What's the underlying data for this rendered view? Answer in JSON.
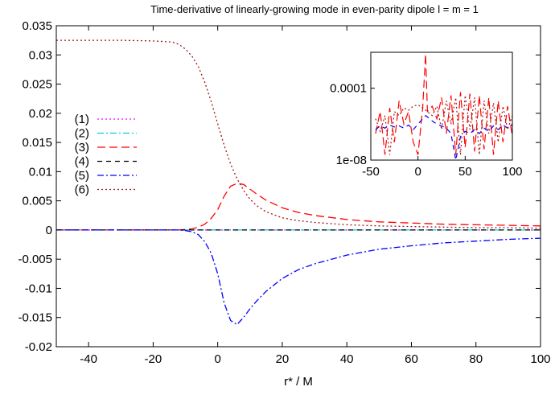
{
  "chart_data": [
    {
      "type": "line",
      "title": "Time-derivative of linearly-growing mode in even-parity dipole l = m = 1",
      "xlabel": "r* / M",
      "ylabel": "",
      "xlim": [
        -50,
        100
      ],
      "ylim": [
        -0.02,
        0.035
      ],
      "x_ticks": [
        -40,
        -20,
        0,
        20,
        40,
        60,
        80,
        100
      ],
      "x_tick_labels": [
        "-40",
        "-20",
        "0",
        "20",
        "40",
        "60",
        "80",
        "100"
      ],
      "y_ticks": [
        0.035,
        0.03,
        0.025,
        0.02,
        0.015,
        0.01,
        0.005,
        0,
        -0.005,
        -0.01,
        -0.015,
        -0.02
      ],
      "y_tick_labels": [
        "0.035",
        "0.03",
        "0.025",
        "0.02",
        "0.015",
        "0.01",
        "0.005",
        "0",
        "-0.005",
        "-0.01",
        "-0.015",
        "-0.02"
      ],
      "grid": false,
      "legend_position": "left, middle",
      "x": [
        -50,
        -40,
        -30,
        -20,
        -14,
        -12,
        -10,
        -8,
        -6,
        -4,
        -2,
        0,
        2,
        4,
        6,
        8,
        10,
        12,
        15,
        20,
        25,
        30,
        40,
        50,
        60,
        70,
        80,
        90,
        100
      ],
      "series": [
        {
          "name": "(1)",
          "color": "#ff00ff",
          "dash": "dot",
          "values": [
            0,
            0,
            0,
            0,
            0,
            0,
            0,
            0,
            0,
            0,
            0,
            0,
            0,
            0,
            0,
            0,
            0,
            0,
            0,
            0,
            0,
            0,
            0,
            0,
            0,
            0,
            0,
            0,
            0
          ]
        },
        {
          "name": "(2)",
          "color": "#00d0d0",
          "dash": "dash-dot",
          "values": [
            0,
            0,
            0,
            0,
            0,
            0,
            0,
            0,
            0,
            0,
            0,
            0,
            0,
            0,
            0,
            0,
            0,
            0,
            0,
            0,
            0,
            0,
            0,
            0,
            0,
            0,
            0,
            0,
            0
          ]
        },
        {
          "name": "(3)",
          "color": "#ff0000",
          "dash": "long-dash",
          "values": [
            0,
            0,
            0,
            0,
            0,
            0,
            0.0001,
            0.0002,
            0.0005,
            0.001,
            0.002,
            0.0035,
            0.0058,
            0.0075,
            0.008,
            0.0078,
            0.007,
            0.0062,
            0.0051,
            0.0038,
            0.003,
            0.0025,
            0.0018,
            0.0014,
            0.0012,
            0.001,
            0.0009,
            0.0008,
            0.0007
          ]
        },
        {
          "name": "(4)",
          "color": "#000000",
          "dash": "dash",
          "values": [
            0,
            0,
            0,
            0,
            0,
            0,
            0,
            0,
            0,
            0,
            0,
            0,
            0,
            0,
            0,
            0,
            0,
            0,
            0,
            0,
            0,
            0,
            0,
            0,
            0,
            0,
            0,
            0,
            0
          ]
        },
        {
          "name": "(5)",
          "color": "#0000ff",
          "dash": "dash-dot",
          "values": [
            0,
            0,
            0,
            0,
            0,
            0,
            -0.0001,
            -0.0003,
            -0.0008,
            -0.002,
            -0.004,
            -0.0075,
            -0.0125,
            -0.0155,
            -0.0162,
            -0.015,
            -0.0135,
            -0.0122,
            -0.0105,
            -0.0083,
            -0.0068,
            -0.0058,
            -0.0043,
            -0.0033,
            -0.0027,
            -0.0022,
            -0.0019,
            -0.0016,
            -0.0014
          ]
        },
        {
          "name": "(6)",
          "color": "#a01818",
          "dash": "dot",
          "values": [
            0.0325,
            0.0325,
            0.0325,
            0.0324,
            0.0322,
            0.0318,
            0.031,
            0.0298,
            0.028,
            0.0253,
            0.022,
            0.0182,
            0.0145,
            0.0113,
            0.0088,
            0.0068,
            0.0053,
            0.0042,
            0.0031,
            0.0021,
            0.0016,
            0.0013,
            0.0009,
            0.0007,
            0.0006,
            0.0005,
            0.0004,
            0.0004,
            0.0003
          ]
        }
      ]
    },
    {
      "type": "line",
      "title": "",
      "xlabel": "",
      "ylabel": "",
      "xlim": [
        -50,
        100
      ],
      "ylim": [
        1e-08,
        0.01
      ],
      "y_scale": "log",
      "x_ticks": [
        -50,
        0,
        50,
        100
      ],
      "x_tick_labels": [
        "-50",
        "0",
        "50",
        "100"
      ],
      "y_ticks": [
        0.0001,
        1e-08
      ],
      "y_tick_labels": [
        "0.0001",
        "1e-08"
      ],
      "grid": false,
      "x": [
        -45,
        -40,
        -35,
        -30,
        -25,
        -20,
        -15,
        -10,
        -5,
        0,
        5,
        8,
        10,
        15,
        20,
        25,
        30,
        35,
        40,
        45,
        50,
        55,
        60,
        65,
        70,
        75,
        80,
        85,
        90,
        95,
        100
      ],
      "series": [
        {
          "name": "(3)",
          "color": "#ff0000",
          "dash": "long-dash",
          "values": [
            3e-07,
            5e-06,
            2e-08,
            8e-06,
            1e-07,
            2e-05,
            1e-06,
            5e-06,
            1e-07,
            2e-08,
            8e-06,
            0.008,
            5e-06,
            1e-05,
            2e-06,
            3e-05,
            3e-07,
            4e-05,
            2e-08,
            6e-05,
            5e-08,
            5e-05,
            3e-08,
            4e-05,
            4e-08,
            3e-05,
            2e-08,
            2e-05,
            1e-07,
            1e-05,
            2e-07
          ]
        },
        {
          "name": "(5)",
          "color": "#0000ff",
          "dash": "dash",
          "values": [
            5e-07,
            8e-07,
            6e-07,
            9e-07,
            7e-07,
            8e-07,
            6e-07,
            9e-07,
            5e-07,
            1e-06,
            2e-06,
            3e-06,
            2.5e-06,
            1.5e-06,
            1e-06,
            8e-07,
            6e-07,
            3e-07,
            1e-08,
            2e-07,
            4e-07,
            3e-07,
            5e-07,
            3e-07,
            6e-07,
            4e-07,
            8e-07,
            5e-07,
            9e-07,
            6e-07,
            1e-06
          ]
        },
        {
          "name": "(6)",
          "color": "#a01818",
          "dash": "dot",
          "values": [
            2e-06,
            4e-07,
            3e-06,
            2e-08,
            5e-06,
            3e-06,
            8e-06,
            6e-06,
            1e-05,
            1.2e-05,
            8e-06,
            6e-06,
            5e-06,
            3e-06,
            1e-05,
            5e-07,
            2e-05,
            1e-06,
            3e-05,
            2e-08,
            4e-05,
            5e-07,
            3e-05,
            2e-08,
            2e-05,
            3e-07,
            1.5e-05,
            1e-07,
            1e-05,
            5e-07,
            3e-06
          ]
        }
      ]
    }
  ]
}
